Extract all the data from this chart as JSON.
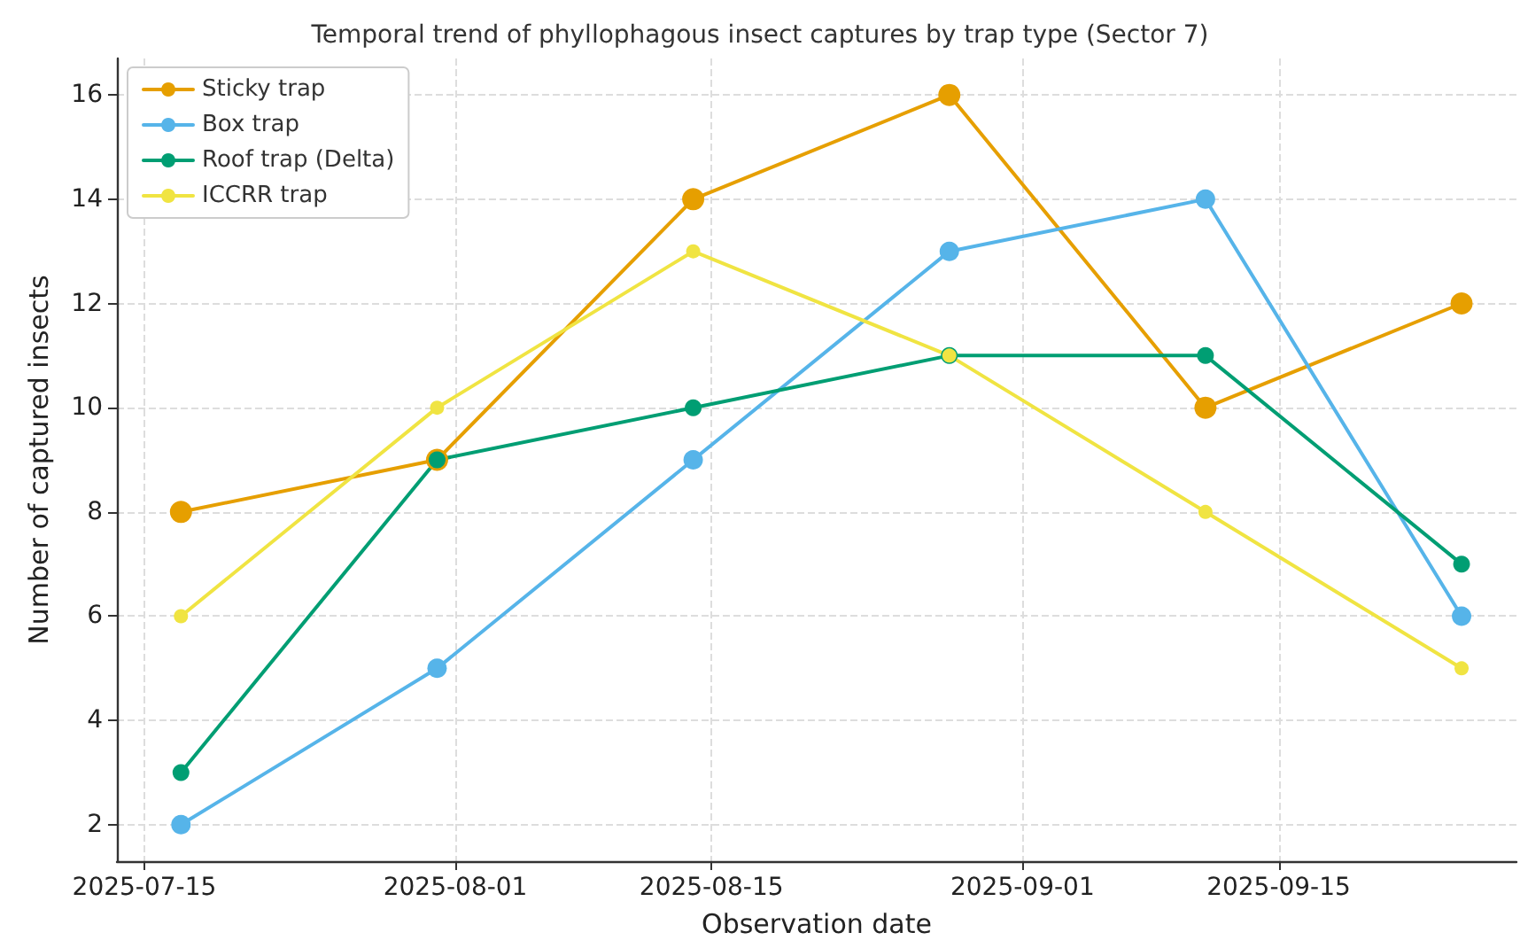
{
  "chart_data": {
    "type": "line",
    "title": "Temporal trend of phyllophagous insect captures by trap type (Sector 7)",
    "xlabel": "Observation date",
    "ylabel": "Number of captured insects",
    "x": [
      "2025-07-17",
      "2025-07-31",
      "2025-08-14",
      "2025-08-28",
      "2025-09-11",
      "2025-09-25"
    ],
    "series": [
      {
        "name": "Sticky trap",
        "color": "#e69f00",
        "values": [
          8,
          9,
          14,
          16,
          10,
          12
        ]
      },
      {
        "name": "Box trap",
        "color": "#56b4e9",
        "values": [
          2,
          5,
          9,
          13,
          14,
          6
        ]
      },
      {
        "name": "Roof trap (Delta)",
        "color": "#009e73",
        "values": [
          3,
          9,
          10,
          11,
          11,
          7
        ]
      },
      {
        "name": "ICCRR trap",
        "color": "#f0e442",
        "values": [
          6,
          10,
          13,
          11,
          8,
          5
        ]
      }
    ],
    "xlim": [
      "2025-07-13T12:00",
      "2025-09-28"
    ],
    "xticks": [
      "2025-07-15",
      "2025-08-01",
      "2025-08-15",
      "2025-09-01",
      "2025-09-15"
    ],
    "ylim": [
      1.3,
      16.7
    ],
    "yticks": [
      2,
      4,
      6,
      8,
      10,
      12,
      14,
      16
    ],
    "grid": true,
    "legend": "top left",
    "marker": "circle",
    "line_style": "solid"
  }
}
